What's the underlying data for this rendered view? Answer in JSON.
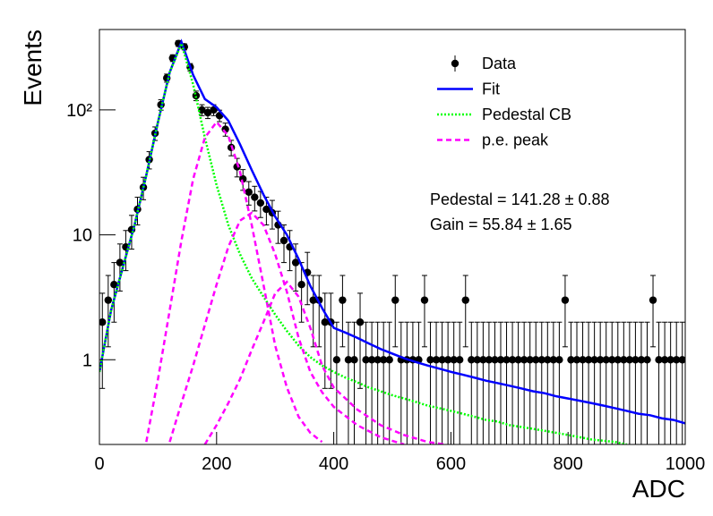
{
  "chart_data": {
    "type": "histogram-fit",
    "x_label": "ADC",
    "y_label": "Events",
    "xlim": [
      0,
      1000
    ],
    "xticks": [
      0,
      200,
      400,
      600,
      800,
      1000
    ],
    "ylim": [
      0.21,
      440
    ],
    "yticks": [
      1,
      10,
      {
        "value": 100,
        "label": "10²"
      }
    ],
    "log_y": true,
    "annotations": [
      "Pedestal = 141.28 ± 0.88",
      "Gain = 55.84 ± 1.65"
    ],
    "series": [
      {
        "name": "Data",
        "color": "#000000",
        "x": [
          5,
          15,
          25,
          35,
          45,
          55,
          65,
          75,
          85,
          95,
          105,
          115,
          125,
          135,
          145,
          155,
          165,
          175,
          185,
          195,
          205,
          215,
          225,
          235,
          245,
          255,
          265,
          275,
          285,
          295,
          305,
          315,
          325,
          335,
          345,
          355,
          365,
          375,
          385,
          395,
          405,
          415,
          425,
          435,
          445,
          455,
          465,
          475,
          485,
          495,
          505,
          515,
          525,
          535,
          545,
          555,
          565,
          575,
          585,
          595,
          605,
          615,
          625,
          635,
          645,
          655,
          665,
          675,
          685,
          695,
          705,
          715,
          725,
          735,
          745,
          755,
          765,
          775,
          785,
          795,
          805,
          815,
          825,
          835,
          845,
          855,
          865,
          875,
          885,
          895,
          905,
          915,
          925,
          935,
          945,
          955,
          965,
          975,
          985,
          995
        ],
        "values": [
          2,
          3,
          4,
          6,
          8,
          11,
          16,
          24,
          40,
          65,
          110,
          180,
          260,
          340,
          320,
          220,
          130,
          100,
          95,
          100,
          90,
          70,
          50,
          35,
          28,
          22,
          20,
          18,
          16,
          15,
          12,
          9,
          8,
          6,
          4,
          5,
          3,
          3,
          2,
          2,
          1,
          3,
          1,
          1,
          2,
          1,
          1,
          1,
          1,
          1,
          3,
          1,
          1,
          1,
          1,
          3,
          1,
          1,
          1,
          1,
          1,
          1,
          3,
          1,
          1,
          1,
          1,
          1,
          1,
          1,
          1,
          1,
          1,
          1,
          1,
          1,
          1,
          1,
          1,
          3,
          1,
          1,
          1,
          1,
          1,
          1,
          1,
          1,
          1,
          1,
          1,
          1,
          1,
          1,
          3,
          1,
          1,
          1,
          1,
          1
        ],
        "errors": [
          1.41,
          1.73,
          2,
          2.45,
          2.83,
          3.32,
          4,
          4.9,
          6.32,
          8.06,
          10.49,
          13.42,
          16.12,
          18.44,
          17.89,
          14.83,
          11.4,
          10,
          9.75,
          10,
          9.49,
          8.37,
          7.07,
          5.92,
          5.29,
          4.69,
          4.47,
          4.24,
          4,
          3.87,
          3.46,
          3,
          2.83,
          2.45,
          2,
          2.24,
          1.73,
          1.73,
          1.41,
          1.41,
          1,
          1.73,
          1,
          1,
          1.41,
          1,
          1,
          1,
          1,
          1,
          1.73,
          1,
          1,
          1,
          1,
          1.73,
          1,
          1,
          1,
          1,
          1,
          1,
          1.73,
          1,
          1,
          1,
          1,
          1,
          1,
          1,
          1,
          1,
          1,
          1,
          1,
          1,
          1,
          1,
          1,
          1.73,
          1,
          1,
          1,
          1,
          1,
          1,
          1,
          1,
          1,
          1,
          1,
          1,
          1,
          1,
          1.73,
          1,
          1,
          1,
          1,
          1
        ]
      },
      {
        "name": "Fit",
        "color": "#0000ff",
        "style": "solid",
        "x": [
          0,
          20,
          40,
          60,
          80,
          100,
          120,
          140,
          160,
          180,
          200,
          220,
          240,
          260,
          280,
          300,
          320,
          340,
          360,
          380,
          400,
          420,
          440,
          460,
          480,
          500,
          520,
          540,
          560,
          580,
          600,
          620,
          640,
          660,
          680,
          700,
          720,
          740,
          760,
          780,
          800,
          820,
          840,
          860,
          880,
          900,
          920,
          940,
          960,
          980,
          1000
        ],
        "values": [
          0.8,
          2.5,
          5.5,
          12,
          30,
          80,
          200,
          350,
          190,
          122,
          105,
          82,
          53,
          33,
          21,
          14,
          10,
          6.4,
          3.9,
          2.6,
          1.8,
          1.65,
          1.5,
          1.35,
          1.22,
          1.12,
          1.03,
          0.96,
          0.9,
          0.85,
          0.8,
          0.76,
          0.72,
          0.68,
          0.65,
          0.62,
          0.59,
          0.56,
          0.54,
          0.51,
          0.49,
          0.47,
          0.45,
          0.43,
          0.41,
          0.39,
          0.37,
          0.36,
          0.34,
          0.33,
          0.31
        ]
      },
      {
        "name": "Pedestal CB",
        "color": "#00ff00",
        "style": "dotted",
        "x": [
          0,
          20,
          40,
          60,
          80,
          100,
          120,
          140,
          160,
          180,
          200,
          220,
          240,
          260,
          280,
          300,
          320,
          340,
          360,
          380,
          400,
          420,
          440,
          460,
          480,
          500,
          520,
          540,
          560,
          580,
          600,
          620,
          640,
          660,
          680,
          700,
          720,
          740,
          760,
          780,
          800,
          820,
          840,
          860,
          880,
          900
        ],
        "values": [
          0.8,
          2.5,
          5.5,
          12,
          30,
          80,
          200,
          340,
          160,
          60,
          25,
          12,
          7,
          4.5,
          3.2,
          2.3,
          1.7,
          1.3,
          1.05,
          0.9,
          0.8,
          0.72,
          0.66,
          0.6,
          0.56,
          0.52,
          0.49,
          0.46,
          0.43,
          0.41,
          0.39,
          0.37,
          0.35,
          0.33,
          0.32,
          0.3,
          0.29,
          0.28,
          0.27,
          0.26,
          0.25,
          0.24,
          0.23,
          0.225,
          0.22,
          0.21
        ]
      },
      {
        "name": "p.e. peak",
        "color": "#ff00ff",
        "style": "dashed",
        "x": [
          80,
          100,
          120,
          140,
          160,
          180,
          200,
          220,
          240,
          260,
          280,
          300,
          320,
          340,
          360,
          380,
          null,
          120,
          140,
          160,
          180,
          200,
          220,
          240,
          260,
          280,
          300,
          320,
          340,
          360,
          380,
          400,
          440,
          480,
          520,
          null,
          180,
          200,
          220,
          240,
          260,
          280,
          300,
          320,
          340,
          360,
          380,
          400,
          440,
          480,
          520,
          560,
          590
        ],
        "values": [
          0.22,
          0.7,
          2.5,
          9,
          28,
          60,
          80,
          62,
          32,
          12,
          4,
          1.3,
          0.6,
          0.35,
          0.26,
          0.22,
          null,
          0.22,
          0.45,
          0.9,
          1.9,
          4,
          8,
          13,
          15,
          12,
          7,
          3.5,
          1.5,
          0.8,
          0.55,
          0.42,
          0.3,
          0.24,
          0.21,
          null,
          0.21,
          0.3,
          0.45,
          0.7,
          1.2,
          2,
          3.4,
          4.2,
          3.2,
          1.8,
          0.9,
          0.6,
          0.4,
          0.3,
          0.25,
          0.22,
          0.21
        ]
      }
    ]
  }
}
